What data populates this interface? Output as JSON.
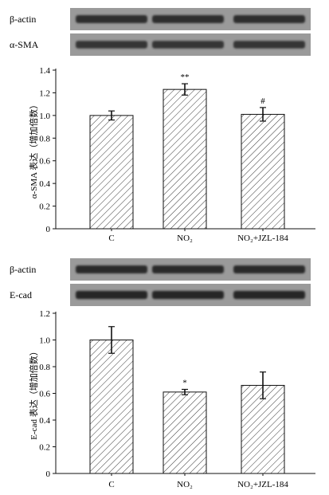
{
  "chart_data": [
    {
      "type": "bar",
      "ylabel": "α-SMA 表达（增加倍数）",
      "ylim": [
        0,
        1.4
      ],
      "yticks": [
        "0",
        "0.2",
        "0.4",
        "0.6",
        "0.8",
        "1.0",
        "1.2",
        "1.4"
      ],
      "categories": [
        "C",
        "NO₂",
        "NO₂+JZL-184"
      ],
      "values": [
        1.0,
        1.23,
        1.01
      ],
      "errors": [
        0.04,
        0.05,
        0.06
      ],
      "significance": [
        "",
        "**",
        "#"
      ],
      "blots": [
        {
          "label": "β-actin",
          "intensity": 0.72
        },
        {
          "label": "α-SMA",
          "intensity": 0.6
        }
      ]
    },
    {
      "type": "bar",
      "ylabel": "E-cad 表达（增加倍数）",
      "ylim": [
        0,
        1.2
      ],
      "yticks": [
        "0",
        "0.2",
        "0.4",
        "0.6",
        "0.8",
        "1.0",
        "1.2"
      ],
      "categories": [
        "C",
        "NO₂",
        "NO₂+JZL-184"
      ],
      "values": [
        1.0,
        0.61,
        0.66
      ],
      "errors": [
        0.1,
        0.02,
        0.1
      ],
      "significance": [
        "",
        "*",
        ""
      ],
      "blots": [
        {
          "label": "β-actin",
          "intensity": 0.75
        },
        {
          "label": "E-cad",
          "intensity": 0.8
        }
      ]
    }
  ]
}
